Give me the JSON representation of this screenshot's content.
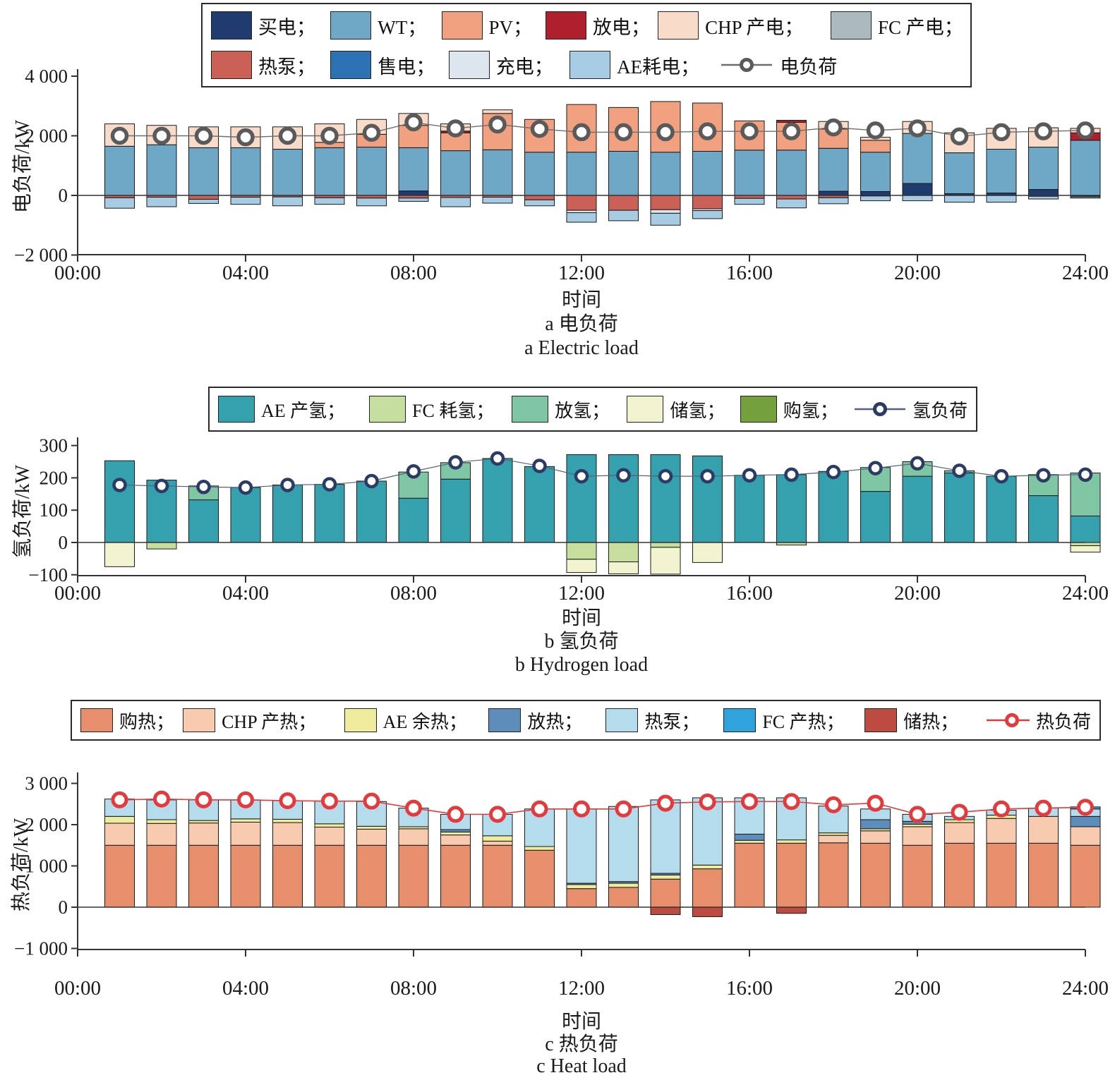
{
  "chart_data": [
    {
      "id": "electric",
      "type": "bar",
      "stacked": true,
      "ylabel": "电负荷/kW",
      "xlabel": "时间",
      "caption_zh": "a 电负荷",
      "caption_en": "a  Electric load",
      "ylim": [
        -2000,
        4000
      ],
      "grid": false,
      "legend_position": "top",
      "y_ticks": [
        {
          "v": 4000,
          "label": "4 000"
        },
        {
          "v": 2000,
          "label": "2 000"
        },
        {
          "v": 0,
          "label": "0"
        },
        {
          "v": -2000,
          "label": "−2 000"
        }
      ],
      "x_ticks": [
        {
          "h": 0,
          "label": "00:00"
        },
        {
          "h": 4,
          "label": "04:00"
        },
        {
          "h": 8,
          "label": "08:00"
        },
        {
          "h": 12,
          "label": "12:00"
        },
        {
          "h": 16,
          "label": "16:00"
        },
        {
          "h": 20,
          "label": "20:00"
        },
        {
          "h": 24,
          "label": "24:00"
        }
      ],
      "hours": [
        1,
        2,
        3,
        4,
        5,
        6,
        7,
        8,
        9,
        10,
        11,
        12,
        13,
        14,
        15,
        16,
        17,
        18,
        19,
        20,
        21,
        22,
        23,
        24
      ],
      "series": [
        {
          "name": "买电",
          "legend": "买电；",
          "color": "#1F3B70",
          "values": [
            0,
            0,
            0,
            0,
            0,
            0,
            0,
            150,
            0,
            0,
            0,
            0,
            0,
            0,
            0,
            0,
            0,
            140,
            130,
            400,
            60,
            80,
            200,
            0
          ]
        },
        {
          "name": "WT",
          "legend": "WT；",
          "color": "#6FA7C7",
          "values": [
            1650,
            1700,
            1600,
            1600,
            1550,
            1600,
            1620,
            1450,
            1500,
            1530,
            1450,
            1450,
            1480,
            1450,
            1480,
            1520,
            1520,
            1440,
            1320,
            1680,
            1370,
            1470,
            1420,
            1850
          ]
        },
        {
          "name": "PV",
          "legend": "PV；",
          "color": "#F1A17F",
          "values": [
            0,
            0,
            0,
            0,
            0,
            180,
            430,
            750,
            600,
            1220,
            1100,
            1600,
            1470,
            1700,
            1620,
            980,
            930,
            650,
            400,
            0,
            0,
            0,
            0,
            0
          ]
        },
        {
          "name": "放电",
          "legend": "放电；",
          "color": "#AF1F2D",
          "values": [
            0,
            0,
            0,
            0,
            0,
            0,
            0,
            0,
            60,
            0,
            0,
            0,
            0,
            0,
            0,
            0,
            70,
            0,
            0,
            0,
            0,
            0,
            0,
            250
          ]
        },
        {
          "name": "CHP 产电",
          "legend": "CHP 产电；",
          "color": "#F9DBC9",
          "values": [
            750,
            650,
            700,
            700,
            750,
            620,
            500,
            400,
            240,
            120,
            0,
            0,
            0,
            0,
            0,
            0,
            0,
            250,
            100,
            400,
            670,
            700,
            650,
            150
          ]
        },
        {
          "name": "FC 产电",
          "legend": "FC 产电；",
          "color": "#ACB9BF",
          "values": [
            0,
            0,
            0,
            0,
            0,
            0,
            0,
            0,
            0,
            0,
            0,
            0,
            0,
            0,
            0,
            0,
            0,
            0,
            0,
            0,
            0,
            0,
            0,
            0
          ]
        },
        {
          "name": "热泵",
          "legend": "热泵；",
          "color": "#CB6156",
          "values": [
            -80,
            -60,
            -130,
            -60,
            -50,
            -80,
            -90,
            -90,
            -70,
            -60,
            -150,
            -500,
            -500,
            -480,
            -450,
            -100,
            -120,
            -80,
            -20,
            0,
            0,
            0,
            -30,
            -20
          ]
        },
        {
          "name": "售电",
          "legend": "售电；",
          "color": "#2B71B4",
          "values": [
            0,
            0,
            0,
            0,
            0,
            0,
            0,
            0,
            0,
            0,
            0,
            0,
            0,
            0,
            0,
            0,
            0,
            0,
            0,
            0,
            0,
            0,
            0,
            0
          ]
        },
        {
          "name": "充电",
          "legend": "充电；",
          "color": "#DDE6EF",
          "values": [
            0,
            0,
            0,
            0,
            0,
            0,
            0,
            0,
            0,
            0,
            0,
            -80,
            0,
            -120,
            -60,
            0,
            0,
            0,
            0,
            0,
            0,
            0,
            0,
            -30
          ]
        },
        {
          "name": "AE耗电",
          "legend": "AE耗电；",
          "color": "#A6CBE2",
          "values": [
            -350,
            -320,
            -140,
            -240,
            -300,
            -220,
            -260,
            -110,
            -310,
            -200,
            -200,
            -320,
            -350,
            -400,
            -270,
            -200,
            -300,
            -200,
            -160,
            -180,
            -230,
            -230,
            -90,
            -40
          ]
        }
      ],
      "line": {
        "name": "电负荷",
        "color": "#6E6E6E",
        "marker_color": "#5A5A5A",
        "values": [
          2000,
          2000,
          2000,
          1950,
          2000,
          2000,
          2100,
          2450,
          2250,
          2380,
          2230,
          2120,
          2120,
          2120,
          2150,
          2150,
          2150,
          2280,
          2180,
          2250,
          1980,
          2120,
          2150,
          2180
        ]
      }
    },
    {
      "id": "hydrogen",
      "type": "bar",
      "stacked": true,
      "ylabel": "氢负荷/kW",
      "xlabel": "时间",
      "caption_zh": "b 氢负荷",
      "caption_en": "b  Hydrogen load",
      "ylim": [
        -100,
        300
      ],
      "grid": false,
      "legend_position": "top",
      "y_ticks": [
        {
          "v": 300,
          "label": "300"
        },
        {
          "v": 200,
          "label": "200"
        },
        {
          "v": 100,
          "label": "100"
        },
        {
          "v": 0,
          "label": "0"
        },
        {
          "v": -100,
          "label": "−100"
        }
      ],
      "x_ticks": [
        {
          "h": 0,
          "label": "00:00"
        },
        {
          "h": 4,
          "label": "04:00"
        },
        {
          "h": 8,
          "label": "08:00"
        },
        {
          "h": 12,
          "label": "12:00"
        },
        {
          "h": 16,
          "label": "16:00"
        },
        {
          "h": 20,
          "label": "20:00"
        },
        {
          "h": 24,
          "label": "24:00"
        }
      ],
      "hours": [
        1,
        2,
        3,
        4,
        5,
        6,
        7,
        8,
        9,
        10,
        11,
        12,
        13,
        14,
        15,
        16,
        17,
        18,
        19,
        20,
        21,
        22,
        23,
        24
      ],
      "series": [
        {
          "name": "AE 产氢",
          "legend": "AE 产氢；",
          "color": "#35A0AE",
          "values": [
            253,
            193,
            132,
            170,
            178,
            180,
            190,
            137,
            196,
            260,
            235,
            272,
            272,
            272,
            268,
            208,
            210,
            220,
            158,
            205,
            215,
            205,
            145,
            82
          ]
        },
        {
          "name": "FC 耗氢",
          "legend": "FC 耗氢；",
          "color": "#C6DE9E",
          "values": [
            0,
            -20,
            0,
            0,
            0,
            0,
            0,
            0,
            0,
            0,
            0,
            -52,
            -60,
            -15,
            0,
            0,
            -8,
            0,
            0,
            0,
            0,
            0,
            0,
            -10
          ]
        },
        {
          "name": "放氢",
          "legend": "放氢；",
          "color": "#7FC7A4",
          "values": [
            0,
            0,
            43,
            0,
            0,
            0,
            0,
            81,
            51,
            0,
            0,
            0,
            0,
            0,
            0,
            0,
            0,
            0,
            74,
            45,
            7,
            0,
            65,
            133
          ]
        },
        {
          "name": "储氢",
          "legend": "储氢；",
          "color": "#F2F4D0",
          "values": [
            -75,
            0,
            0,
            0,
            0,
            0,
            0,
            0,
            0,
            0,
            0,
            -41,
            -37,
            -83,
            -62,
            0,
            0,
            0,
            0,
            0,
            0,
            0,
            0,
            -20
          ]
        },
        {
          "name": "购氢",
          "legend": "购氢；",
          "color": "#74A13C",
          "values": [
            0,
            0,
            0,
            0,
            0,
            0,
            0,
            0,
            0,
            0,
            0,
            0,
            0,
            0,
            0,
            0,
            0,
            0,
            0,
            0,
            0,
            0,
            0,
            0
          ]
        }
      ],
      "line": {
        "name": "氢负荷",
        "color": "#55617F",
        "marker_color": "#2C3B63",
        "values": [
          178,
          175,
          172,
          170,
          178,
          180,
          190,
          220,
          248,
          260,
          237,
          205,
          208,
          205,
          205,
          208,
          210,
          218,
          230,
          245,
          222,
          205,
          208,
          210
        ]
      }
    },
    {
      "id": "heat",
      "type": "bar",
      "stacked": true,
      "ylabel": "热负荷/kW",
      "xlabel": "时间",
      "caption_zh": "c 热负荷",
      "caption_en": "c  Heat load",
      "ylim": [
        -1000,
        3000
      ],
      "grid": false,
      "legend_position": "top",
      "y_ticks": [
        {
          "v": 3000,
          "label": "3 000"
        },
        {
          "v": 2000,
          "label": "2 000"
        },
        {
          "v": 1000,
          "label": "1 000"
        },
        {
          "v": 0,
          "label": "0"
        },
        {
          "v": -1000,
          "label": "−1 000"
        }
      ],
      "x_ticks": [
        {
          "h": 0,
          "label": "00:00"
        },
        {
          "h": 4,
          "label": "04:00"
        },
        {
          "h": 8,
          "label": "08:00"
        },
        {
          "h": 12,
          "label": "12:00"
        },
        {
          "h": 16,
          "label": "16:00"
        },
        {
          "h": 20,
          "label": "20:00"
        },
        {
          "h": 24,
          "label": "24:00"
        }
      ],
      "hours": [
        1,
        2,
        3,
        4,
        5,
        6,
        7,
        8,
        9,
        10,
        11,
        12,
        13,
        14,
        15,
        16,
        17,
        18,
        19,
        20,
        21,
        22,
        23,
        24
      ],
      "series": [
        {
          "name": "购热",
          "legend": "购热；",
          "color": "#E78E6D",
          "values": [
            1500,
            1500,
            1500,
            1500,
            1500,
            1500,
            1500,
            1500,
            1500,
            1500,
            1380,
            450,
            480,
            680,
            930,
            1550,
            1550,
            1560,
            1550,
            1500,
            1550,
            1550,
            1550,
            1500
          ]
        },
        {
          "name": "CHP 产热",
          "legend": "CHP 产热；",
          "color": "#F8CBB1",
          "values": [
            535,
            530,
            540,
            560,
            550,
            440,
            390,
            400,
            250,
            100,
            0,
            0,
            0,
            0,
            0,
            0,
            0,
            180,
            300,
            450,
            500,
            600,
            650,
            450
          ]
        },
        {
          "name": "AE 余热",
          "legend": "AE 余热；",
          "color": "#EFEC9E",
          "values": [
            165,
            90,
            60,
            80,
            80,
            80,
            70,
            50,
            70,
            130,
            90,
            100,
            100,
            100,
            90,
            70,
            80,
            60,
            50,
            60,
            70,
            80,
            0,
            0
          ]
        },
        {
          "name": "放热",
          "legend": "放热；",
          "color": "#5D8EBB",
          "values": [
            0,
            0,
            0,
            0,
            0,
            0,
            0,
            0,
            60,
            0,
            0,
            30,
            40,
            40,
            0,
            150,
            0,
            0,
            220,
            70,
            0,
            0,
            0,
            250
          ]
        },
        {
          "name": "热泵",
          "legend": "热泵；",
          "color": "#B5DCEC",
          "values": [
            420,
            480,
            500,
            460,
            450,
            550,
            600,
            450,
            370,
            520,
            910,
            1800,
            1820,
            1780,
            1630,
            880,
            1020,
            650,
            260,
            170,
            80,
            120,
            200,
            180
          ]
        },
        {
          "name": "FC 产热",
          "legend": "FC 产热；",
          "color": "#2FA3DB",
          "values": [
            0,
            0,
            0,
            0,
            0,
            0,
            0,
            0,
            0,
            0,
            0,
            0,
            0,
            0,
            0,
            0,
            0,
            0,
            0,
            0,
            0,
            0,
            0,
            50
          ]
        },
        {
          "name": "储热",
          "legend": "储热；",
          "color": "#BE4B41",
          "values": [
            0,
            0,
            0,
            0,
            0,
            0,
            0,
            0,
            0,
            0,
            0,
            0,
            0,
            -180,
            -230,
            0,
            -150,
            0,
            0,
            0,
            0,
            0,
            0,
            0
          ]
        }
      ],
      "line": {
        "name": "热负荷",
        "color": "#E6393B",
        "marker_color": "#E6393B",
        "values": [
          2600,
          2620,
          2600,
          2600,
          2580,
          2570,
          2570,
          2400,
          2250,
          2250,
          2380,
          2380,
          2380,
          2520,
          2550,
          2560,
          2560,
          2480,
          2520,
          2250,
          2300,
          2380,
          2400,
          2420
        ]
      }
    }
  ]
}
